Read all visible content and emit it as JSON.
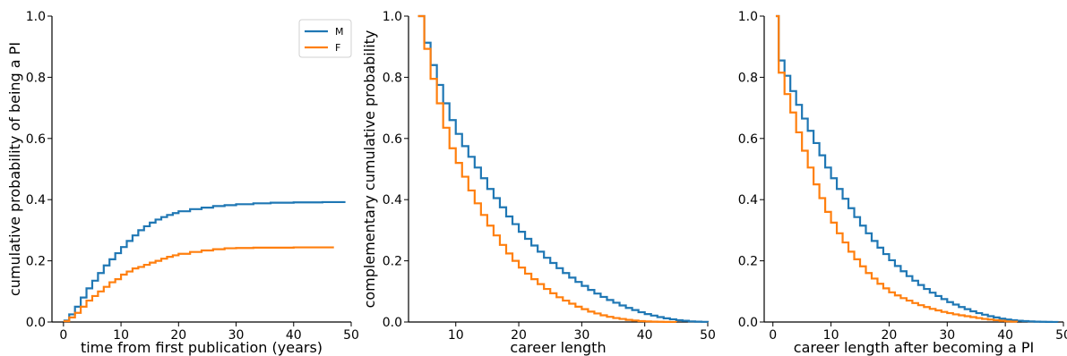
{
  "colors": {
    "M": "#1f77b4",
    "F": "#ff7f0e"
  },
  "chart_data": [
    {
      "type": "line",
      "step": true,
      "xlabel": "time from first publication (years)",
      "ylabel": "cumulative probability of being a PI",
      "xlim": [
        -2,
        50
      ],
      "ylim": [
        0,
        1
      ],
      "xticks": [
        "0",
        "10",
        "20",
        "30",
        "40",
        "50"
      ],
      "yticks": [
        "0.0",
        "0.2",
        "0.4",
        "0.6",
        "0.8",
        "1.0"
      ],
      "legend": {
        "position": "top-right",
        "entries": [
          "M",
          "F"
        ]
      },
      "series": [
        {
          "name": "M",
          "x": [
            0,
            1,
            2,
            3,
            4,
            5,
            6,
            7,
            8,
            9,
            10,
            11,
            12,
            13,
            14,
            15,
            16,
            17,
            18,
            19,
            20,
            22,
            24,
            26,
            28,
            30,
            33,
            36,
            40,
            45,
            49
          ],
          "y": [
            0.005,
            0.025,
            0.05,
            0.08,
            0.11,
            0.135,
            0.16,
            0.185,
            0.205,
            0.225,
            0.245,
            0.265,
            0.283,
            0.3,
            0.313,
            0.325,
            0.335,
            0.343,
            0.35,
            0.356,
            0.362,
            0.369,
            0.374,
            0.379,
            0.382,
            0.385,
            0.388,
            0.39,
            0.391,
            0.392,
            0.392
          ]
        },
        {
          "name": "F",
          "x": [
            0,
            1,
            2,
            3,
            4,
            5,
            6,
            7,
            8,
            9,
            10,
            11,
            12,
            13,
            14,
            15,
            16,
            17,
            18,
            19,
            20,
            22,
            24,
            26,
            28,
            30,
            33,
            36,
            40,
            45,
            47
          ],
          "y": [
            0.003,
            0.015,
            0.03,
            0.05,
            0.07,
            0.085,
            0.1,
            0.115,
            0.13,
            0.14,
            0.155,
            0.165,
            0.175,
            0.18,
            0.187,
            0.194,
            0.2,
            0.207,
            0.213,
            0.218,
            0.223,
            0.229,
            0.234,
            0.238,
            0.241,
            0.242,
            0.243,
            0.243,
            0.244,
            0.244,
            0.244
          ]
        }
      ]
    },
    {
      "type": "line",
      "step": true,
      "xlabel": "career length",
      "ylabel": "complementary cumulative probability",
      "xlim": [
        2.5,
        50
      ],
      "ylim": [
        0,
        1
      ],
      "xticks": [
        "10",
        "20",
        "30",
        "40",
        "50"
      ],
      "yticks": [
        "0.0",
        "0.2",
        "0.4",
        "0.6",
        "0.8",
        "1.0"
      ],
      "series": [
        {
          "name": "M",
          "x": [
            4,
            5,
            6,
            7,
            8,
            9,
            10,
            11,
            12,
            13,
            14,
            15,
            16,
            17,
            18,
            19,
            20,
            21,
            22,
            23,
            24,
            25,
            26,
            27,
            28,
            29,
            30,
            31,
            32,
            33,
            34,
            35,
            36,
            37,
            38,
            39,
            40,
            41,
            42,
            43,
            44,
            45,
            46,
            47,
            48,
            49,
            50
          ],
          "y": [
            1.0,
            0.913,
            0.84,
            0.775,
            0.715,
            0.66,
            0.615,
            0.575,
            0.54,
            0.505,
            0.47,
            0.435,
            0.405,
            0.375,
            0.345,
            0.32,
            0.295,
            0.272,
            0.25,
            0.23,
            0.21,
            0.193,
            0.176,
            0.16,
            0.145,
            0.131,
            0.118,
            0.105,
            0.093,
            0.082,
            0.072,
            0.063,
            0.054,
            0.046,
            0.039,
            0.032,
            0.026,
            0.021,
            0.016,
            0.012,
            0.009,
            0.006,
            0.004,
            0.002,
            0.001,
            0.0005,
            0.0
          ]
        },
        {
          "name": "F",
          "x": [
            4,
            5,
            6,
            7,
            8,
            9,
            10,
            11,
            12,
            13,
            14,
            15,
            16,
            17,
            18,
            19,
            20,
            21,
            22,
            23,
            24,
            25,
            26,
            27,
            28,
            29,
            30,
            31,
            32,
            33,
            34,
            35,
            36,
            37,
            38,
            39,
            40,
            41,
            42,
            43,
            44,
            45
          ],
          "y": [
            1.0,
            0.893,
            0.795,
            0.715,
            0.635,
            0.568,
            0.52,
            0.475,
            0.43,
            0.388,
            0.35,
            0.315,
            0.283,
            0.252,
            0.224,
            0.2,
            0.178,
            0.158,
            0.14,
            0.124,
            0.108,
            0.094,
            0.081,
            0.07,
            0.06,
            0.05,
            0.042,
            0.034,
            0.028,
            0.022,
            0.017,
            0.013,
            0.01,
            0.007,
            0.005,
            0.003,
            0.002,
            0.001,
            0.0007,
            0.0004,
            0.0002,
            0.0
          ]
        }
      ]
    },
    {
      "type": "line",
      "step": true,
      "xlabel": "career length after becoming a PI",
      "ylabel": "",
      "xlim": [
        -1.5,
        50
      ],
      "ylim": [
        0,
        1
      ],
      "xticks": [
        "0",
        "10",
        "20",
        "30",
        "40",
        "50"
      ],
      "yticks": [
        "0.0",
        "0.2",
        "0.4",
        "0.6",
        "0.8",
        "1.0"
      ],
      "series": [
        {
          "name": "M",
          "x": [
            0.5,
            1,
            2,
            3,
            4,
            5,
            6,
            7,
            8,
            9,
            10,
            11,
            12,
            13,
            14,
            15,
            16,
            17,
            18,
            19,
            20,
            21,
            22,
            23,
            24,
            25,
            26,
            27,
            28,
            29,
            30,
            31,
            32,
            33,
            34,
            35,
            36,
            37,
            38,
            39,
            40,
            41,
            42,
            43,
            44,
            45,
            46,
            47,
            48,
            49
          ],
          "y": [
            1.0,
            0.855,
            0.805,
            0.755,
            0.71,
            0.665,
            0.625,
            0.585,
            0.545,
            0.505,
            0.47,
            0.435,
            0.403,
            0.372,
            0.343,
            0.315,
            0.29,
            0.265,
            0.243,
            0.222,
            0.202,
            0.183,
            0.166,
            0.15,
            0.135,
            0.121,
            0.108,
            0.096,
            0.085,
            0.075,
            0.065,
            0.057,
            0.049,
            0.042,
            0.035,
            0.029,
            0.024,
            0.019,
            0.015,
            0.011,
            0.008,
            0.006,
            0.004,
            0.003,
            0.002,
            0.0012,
            0.0007,
            0.0004,
            0.0002,
            0.0
          ]
        },
        {
          "name": "F",
          "x": [
            0.5,
            1,
            2,
            3,
            4,
            5,
            6,
            7,
            8,
            9,
            10,
            11,
            12,
            13,
            14,
            15,
            16,
            17,
            18,
            19,
            20,
            21,
            22,
            23,
            24,
            25,
            26,
            27,
            28,
            29,
            30,
            31,
            32,
            33,
            34,
            35,
            36,
            37,
            38,
            39,
            40,
            41,
            42
          ],
          "y": [
            1.0,
            0.815,
            0.745,
            0.685,
            0.62,
            0.56,
            0.505,
            0.45,
            0.405,
            0.36,
            0.325,
            0.29,
            0.26,
            0.23,
            0.205,
            0.182,
            0.16,
            0.142,
            0.125,
            0.11,
            0.097,
            0.087,
            0.078,
            0.07,
            0.062,
            0.055,
            0.049,
            0.043,
            0.038,
            0.033,
            0.029,
            0.025,
            0.022,
            0.019,
            0.016,
            0.013,
            0.01,
            0.008,
            0.006,
            0.004,
            0.002,
            0.001,
            0.0
          ]
        }
      ]
    }
  ]
}
